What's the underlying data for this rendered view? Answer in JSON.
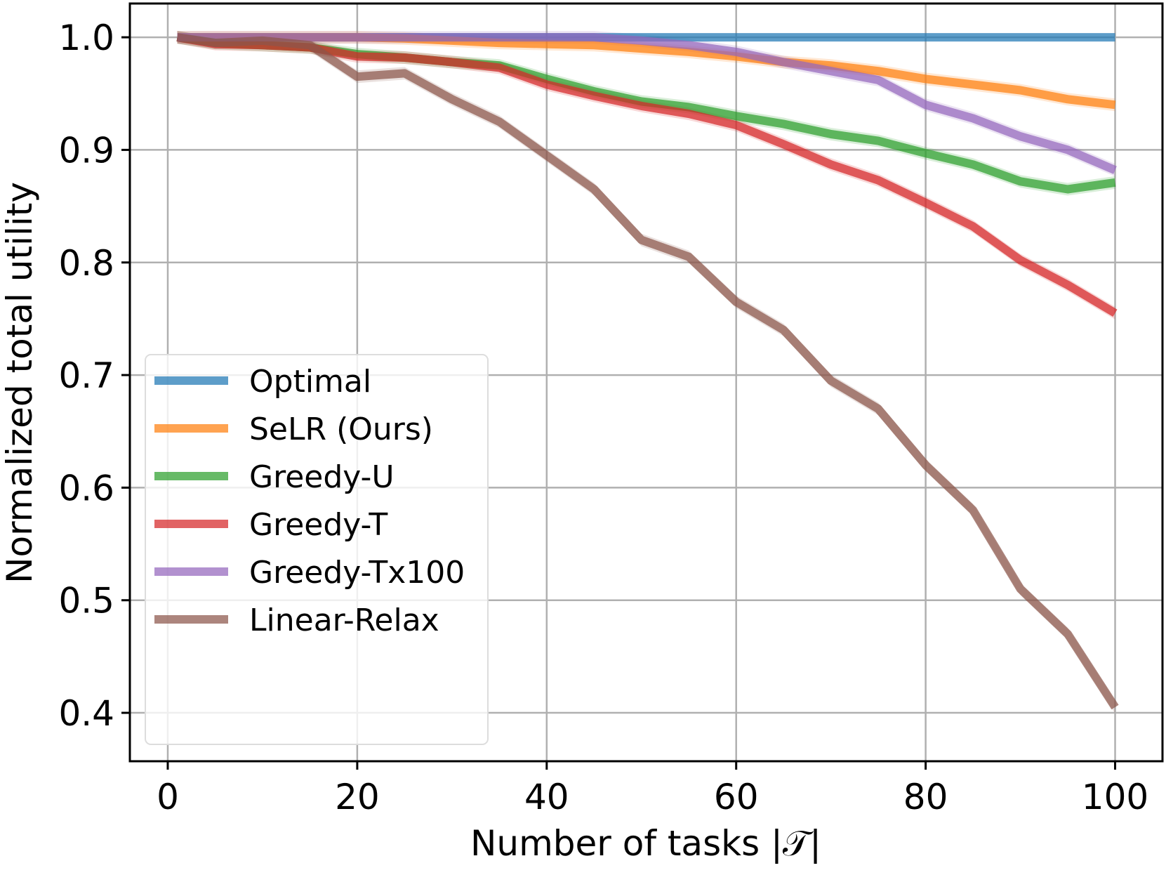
{
  "chart_data": {
    "type": "line",
    "xlabel": "Number of tasks |𝒯|",
    "ylabel": "Normalized total utility",
    "xlim": [
      -4,
      105
    ],
    "ylim": [
      0.357,
      1.03
    ],
    "xticks": [
      0,
      20,
      40,
      60,
      80,
      100
    ],
    "yticks": [
      0.4,
      0.5,
      0.6,
      0.7,
      0.8,
      0.9,
      1.0
    ],
    "xtick_labels": [
      "0",
      "20",
      "40",
      "60",
      "80",
      "100"
    ],
    "ytick_labels": [
      "0.4",
      "0.5",
      "0.6",
      "0.7",
      "0.8",
      "0.9",
      "1.0"
    ],
    "grid": true,
    "legend_position": "lower-left",
    "x": [
      1,
      5,
      10,
      15,
      20,
      25,
      30,
      35,
      40,
      45,
      50,
      55,
      60,
      65,
      70,
      75,
      80,
      85,
      90,
      95,
      100
    ],
    "series": [
      {
        "name": "Optimal",
        "color": "#1f77b4",
        "values": [
          1.0,
          1.0,
          1.0,
          1.0,
          1.0,
          1.0,
          1.0,
          1.0,
          1.0,
          1.0,
          1.0,
          1.0,
          1.0,
          1.0,
          1.0,
          1.0,
          1.0,
          1.0,
          1.0,
          1.0,
          1.0
        ]
      },
      {
        "name": "SeLR (Ours)",
        "color": "#ff7f0e",
        "values": [
          1.0,
          1.0,
          1.0,
          1.0,
          1.0,
          0.999,
          0.997,
          0.995,
          0.994,
          0.993,
          0.99,
          0.987,
          0.983,
          0.978,
          0.975,
          0.97,
          0.963,
          0.958,
          0.953,
          0.945,
          0.94
        ]
      },
      {
        "name": "Greedy-U",
        "color": "#2ca02c",
        "values": [
          1.0,
          0.995,
          0.993,
          0.991,
          0.985,
          0.982,
          0.978,
          0.975,
          0.963,
          0.952,
          0.943,
          0.938,
          0.93,
          0.923,
          0.914,
          0.908,
          0.897,
          0.887,
          0.872,
          0.865,
          0.871
        ]
      },
      {
        "name": "Greedy-T",
        "color": "#d62728",
        "values": [
          1.0,
          0.994,
          0.993,
          0.991,
          0.983,
          0.982,
          0.978,
          0.973,
          0.958,
          0.948,
          0.939,
          0.932,
          0.922,
          0.905,
          0.887,
          0.873,
          0.853,
          0.832,
          0.802,
          0.78,
          0.755
        ]
      },
      {
        "name": "Greedy-Tx100",
        "color": "#9467bd",
        "values": [
          1.0,
          1.0,
          1.0,
          1.0,
          1.0,
          1.0,
          1.0,
          1.0,
          1.0,
          1.0,
          0.997,
          0.993,
          0.987,
          0.978,
          0.97,
          0.962,
          0.94,
          0.928,
          0.912,
          0.9,
          0.882
        ]
      },
      {
        "name": "Linear-Relax",
        "color": "#8c564b",
        "values": [
          1.0,
          0.995,
          0.997,
          0.993,
          0.965,
          0.968,
          0.945,
          0.925,
          0.895,
          0.865,
          0.82,
          0.805,
          0.765,
          0.74,
          0.695,
          0.67,
          0.62,
          0.58,
          0.51,
          0.47,
          0.405
        ]
      }
    ]
  }
}
